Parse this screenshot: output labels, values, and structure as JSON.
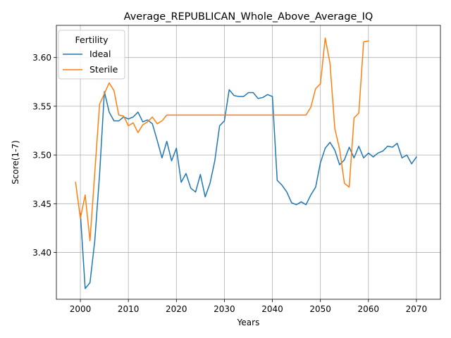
{
  "chart_data": {
    "type": "line",
    "title": "Average_REPUBLICAN_Whole_Above_Average_IQ",
    "xlabel": "Years",
    "ylabel": "Score(1-7)",
    "xlim": [
      1995,
      2075
    ],
    "ylim": [
      3.352,
      3.633
    ],
    "xticks": [
      2000,
      2010,
      2020,
      2030,
      2040,
      2050,
      2060,
      2070
    ],
    "yticks": [
      3.4,
      3.45,
      3.5,
      3.55,
      3.6
    ],
    "xtick_labels": [
      "2000",
      "2010",
      "2020",
      "2030",
      "2040",
      "2050",
      "2060",
      "2070"
    ],
    "ytick_labels": [
      "3.40",
      "3.45",
      "3.50",
      "3.55",
      "3.60"
    ],
    "grid": true,
    "legend": {
      "title": "Fertility",
      "placement": "top-left"
    },
    "series": [
      {
        "name": "Ideal",
        "color": "#1f77b4",
        "x": [
          2000,
          2001,
          2002,
          2003,
          2004,
          2005,
          2006,
          2007,
          2008,
          2009,
          2010,
          2011,
          2012,
          2013,
          2014,
          2015,
          2016,
          2017,
          2018,
          2019,
          2020,
          2021,
          2022,
          2023,
          2024,
          2025,
          2026,
          2027,
          2028,
          2029,
          2030,
          2031,
          2032,
          2033,
          2034,
          2035,
          2036,
          2037,
          2038,
          2039,
          2040,
          2041,
          2042,
          2043,
          2044,
          2045,
          2046,
          2047,
          2048,
          2049,
          2050,
          2051,
          2052,
          2053,
          2054,
          2055,
          2056,
          2057,
          2058,
          2059,
          2060,
          2061,
          2062,
          2063,
          2064,
          2065,
          2066,
          2067,
          2068,
          2069,
          2070
        ],
        "y": [
          3.44,
          3.363,
          3.369,
          3.412,
          3.48,
          3.565,
          3.544,
          3.535,
          3.535,
          3.539,
          3.537,
          3.539,
          3.544,
          3.534,
          3.536,
          3.532,
          3.515,
          3.497,
          3.514,
          3.494,
          3.507,
          3.472,
          3.481,
          3.466,
          3.462,
          3.48,
          3.457,
          3.471,
          3.494,
          3.53,
          3.535,
          3.567,
          3.561,
          3.56,
          3.56,
          3.564,
          3.564,
          3.558,
          3.559,
          3.562,
          3.56,
          3.474,
          3.469,
          3.462,
          3.451,
          3.449,
          3.452,
          3.449,
          3.459,
          3.467,
          3.492,
          3.507,
          3.513,
          3.505,
          3.49,
          3.495,
          3.508,
          3.497,
          3.509,
          3.497,
          3.502,
          3.498,
          3.502,
          3.504,
          3.509,
          3.508,
          3.512,
          3.497,
          3.5,
          3.491,
          3.498
        ]
      },
      {
        "name": "Sterile",
        "color": "#ff7f0e",
        "x": [
          1999,
          2000,
          2001,
          2002,
          2003,
          2004,
          2005,
          2006,
          2007,
          2008,
          2009,
          2010,
          2011,
          2012,
          2013,
          2014,
          2015,
          2016,
          2017,
          2018,
          2019,
          2020,
          2021,
          2022,
          2023,
          2024,
          2025,
          2026,
          2027,
          2028,
          2029,
          2030,
          2031,
          2032,
          2033,
          2034,
          2035,
          2036,
          2037,
          2038,
          2039,
          2040,
          2041,
          2042,
          2043,
          2044,
          2045,
          2046,
          2047,
          2048,
          2049,
          2050,
          2051,
          2052,
          2053,
          2054,
          2055,
          2056,
          2057,
          2058,
          2059,
          2060
        ],
        "y": [
          3.472,
          3.435,
          3.459,
          3.412,
          3.482,
          3.552,
          3.563,
          3.574,
          3.566,
          3.541,
          3.54,
          3.53,
          3.533,
          3.523,
          3.531,
          3.534,
          3.539,
          3.532,
          3.535,
          3.541,
          3.541,
          3.541,
          3.541,
          3.541,
          3.541,
          3.541,
          3.541,
          3.541,
          3.541,
          3.541,
          3.541,
          3.541,
          3.541,
          3.541,
          3.541,
          3.541,
          3.541,
          3.541,
          3.541,
          3.541,
          3.541,
          3.541,
          3.541,
          3.541,
          3.541,
          3.541,
          3.541,
          3.541,
          3.541,
          3.549,
          3.568,
          3.573,
          3.62,
          3.594,
          3.527,
          3.506,
          3.471,
          3.467,
          3.538,
          3.543,
          3.616,
          3.617
        ]
      }
    ]
  }
}
